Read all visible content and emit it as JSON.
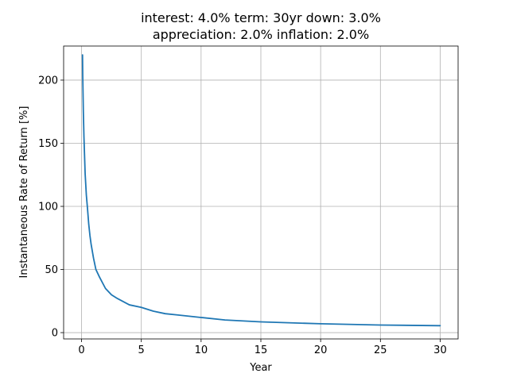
{
  "chart_data": {
    "type": "line",
    "title_line1": "interest: 4.0% term: 30yr down: 3.0%",
    "title_line2": "appreciation: 2.0% inflation: 2.0%",
    "xlabel": "Year",
    "ylabel": "Instantaneous Rate of Return [%]",
    "xlim": [
      -1.5,
      31.5
    ],
    "ylim": [
      -5,
      227
    ],
    "xticks": [
      0,
      5,
      10,
      15,
      20,
      25,
      30
    ],
    "yticks": [
      0,
      50,
      100,
      150,
      200
    ],
    "grid": true,
    "series": [
      {
        "color": "#1f77b4",
        "x": [
          0.08,
          0.1,
          0.15,
          0.2,
          0.3,
          0.4,
          0.5,
          0.6,
          0.7,
          0.8,
          1.0,
          1.2,
          1.5,
          2.0,
          2.5,
          3.0,
          4.0,
          5.0,
          6.0,
          7.0,
          8.0,
          10.0,
          12.0,
          15.0,
          20.0,
          25.0,
          30.0
        ],
        "y": [
          220,
          203,
          175,
          155,
          126,
          109,
          98,
          86,
          77,
          70,
          59,
          50,
          44,
          35,
          30,
          27,
          22,
          20,
          17,
          15,
          14,
          12,
          10,
          8.5,
          7,
          6,
          5.5
        ]
      }
    ]
  }
}
